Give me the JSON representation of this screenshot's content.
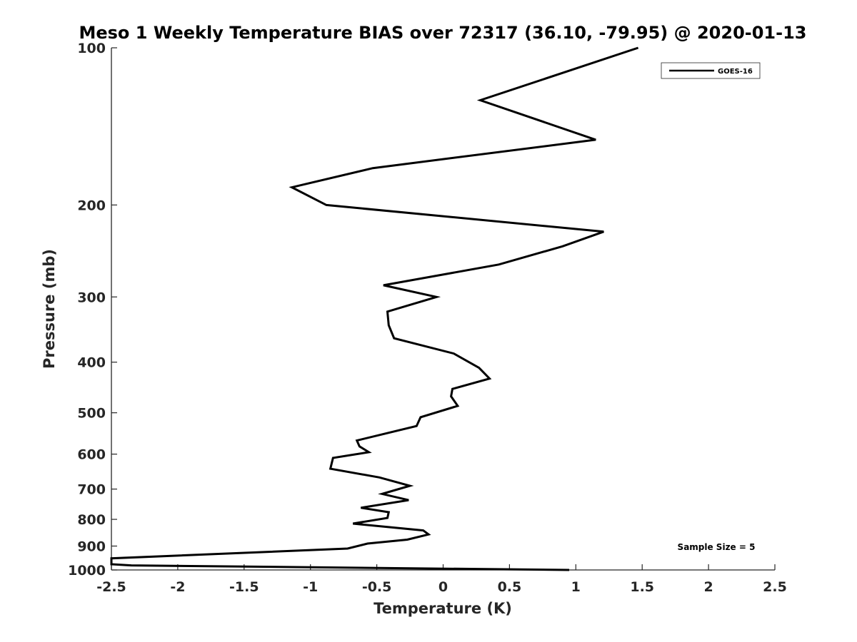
{
  "chart_data": {
    "type": "line",
    "title": "Meso 1 Weekly Temperature BIAS over 72317 (36.10, -79.95) @ 2020-01-13",
    "xlabel": "Temperature (K)",
    "ylabel": "Pressure (mb)",
    "xlim": [
      -2.5,
      2.5
    ],
    "ylim": [
      100,
      1000
    ],
    "y_scale": "log",
    "y_reversed": true,
    "x_ticks": [
      "-2.5",
      "-2",
      "-1.5",
      "-1",
      "-0.5",
      "0",
      "0.5",
      "1",
      "1.5",
      "2",
      "2.5"
    ],
    "y_ticks": [
      "100",
      "200",
      "300",
      "400",
      "500",
      "600",
      "700",
      "800",
      "900",
      "1000"
    ],
    "grid": false,
    "legend": {
      "position": "top-right",
      "entries": [
        "GOES-16"
      ]
    },
    "annotation": "Sample Size = 5",
    "series": [
      {
        "name": "GOES-16",
        "color": "#000000",
        "points": [
          [
            1.47,
            100
          ],
          [
            0.28,
            126
          ],
          [
            1.15,
            150
          ],
          [
            -0.53,
            170
          ],
          [
            -1.14,
            185
          ],
          [
            -0.88,
            200
          ],
          [
            1.21,
            225
          ],
          [
            0.9,
            240
          ],
          [
            0.42,
            260
          ],
          [
            -0.45,
            285
          ],
          [
            -0.05,
            300
          ],
          [
            -0.42,
            320
          ],
          [
            -0.41,
            340
          ],
          [
            -0.37,
            360
          ],
          [
            0.08,
            385
          ],
          [
            0.27,
            410
          ],
          [
            0.35,
            430
          ],
          [
            0.07,
            450
          ],
          [
            0.06,
            465
          ],
          [
            0.11,
            485
          ],
          [
            -0.17,
            510
          ],
          [
            -0.2,
            530
          ],
          [
            -0.65,
            565
          ],
          [
            -0.63,
            580
          ],
          [
            -0.56,
            595
          ],
          [
            -0.83,
            610
          ],
          [
            -0.85,
            640
          ],
          [
            -0.48,
            665
          ],
          [
            -0.25,
            690
          ],
          [
            -0.46,
            715
          ],
          [
            -0.26,
            735
          ],
          [
            -0.62,
            760
          ],
          [
            -0.41,
            775
          ],
          [
            -0.42,
            795
          ],
          [
            -0.68,
            815
          ],
          [
            -0.15,
            840
          ],
          [
            -0.11,
            855
          ],
          [
            -0.27,
            875
          ],
          [
            -0.57,
            890
          ],
          [
            -0.72,
            910
          ],
          [
            -2.5,
            950
          ],
          [
            -2.5,
            975
          ],
          [
            -2.35,
            980
          ],
          [
            0.95,
            1000
          ]
        ]
      }
    ]
  }
}
